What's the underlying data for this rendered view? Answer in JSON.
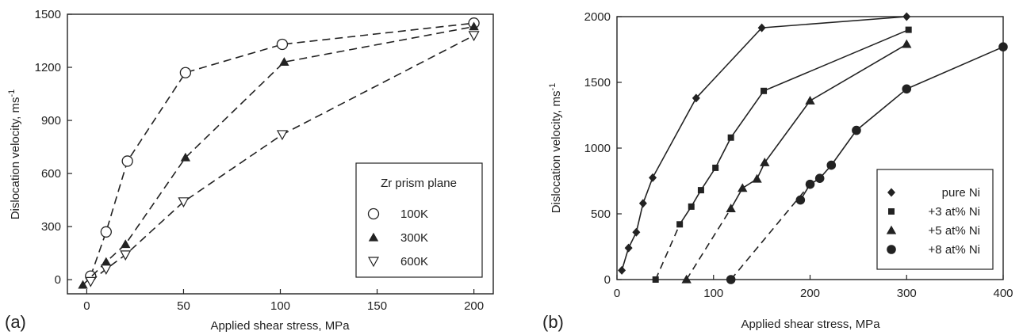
{
  "chart_data": [
    {
      "type": "line",
      "panel_label": "(a)",
      "xlabel": "Applied shear stress, MPa",
      "ylabel": "Dislocation velocity, ms",
      "ylabel_sup": "-1",
      "xlim": [
        -10,
        210
      ],
      "ylim": [
        -80,
        1500
      ],
      "x_ticks": [
        0,
        50,
        100,
        150,
        200
      ],
      "y_ticks": [
        0,
        300,
        600,
        900,
        1200,
        1500
      ],
      "x_tick_labels": [
        "0",
        "50",
        "100",
        "150",
        "200"
      ],
      "y_tick_labels": [
        "0",
        "300",
        "600",
        "900",
        "1200",
        "1500"
      ],
      "legend_title": "Zr prism plane",
      "legend_position": "lower-right",
      "series": [
        {
          "name": "100K",
          "marker": "open-circle",
          "line": "dashed",
          "x": [
            2,
            10,
            21,
            51,
            101,
            200
          ],
          "y": [
            20,
            270,
            670,
            1170,
            1330,
            1450
          ]
        },
        {
          "name": "300K",
          "marker": "filled-triangle",
          "line": "dashed",
          "x": [
            -2,
            10,
            20,
            51,
            102,
            200
          ],
          "y": [
            -30,
            100,
            200,
            690,
            1230,
            1430
          ]
        },
        {
          "name": "600K",
          "marker": "open-triangle-down",
          "line": "dashed",
          "x": [
            2,
            10,
            20,
            50,
            101,
            200
          ],
          "y": [
            -10,
            60,
            140,
            440,
            820,
            1380
          ]
        }
      ]
    },
    {
      "type": "line",
      "panel_label": "(b)",
      "xlabel": "Applied shear stress, MPa",
      "ylabel": "Dislocation velocity, ms",
      "ylabel_sup": "-1",
      "xlim": [
        0,
        400
      ],
      "ylim": [
        0,
        2000
      ],
      "x_ticks": [
        0,
        100,
        200,
        300,
        400
      ],
      "y_ticks": [
        0,
        500,
        1000,
        1500,
        2000
      ],
      "x_tick_labels": [
        "0",
        "100",
        "200",
        "300",
        "400"
      ],
      "y_tick_labels": [
        "0",
        "500",
        "1000",
        "1500",
        "2000"
      ],
      "legend_position": "lower-right",
      "series": [
        {
          "name": "pure Ni",
          "marker": "filled-diamond",
          "dashed_x": [],
          "dashed_y": [],
          "x": [
            5,
            12,
            20,
            27,
            37,
            82,
            150,
            300
          ],
          "y": [
            70,
            240,
            360,
            580,
            775,
            1380,
            1915,
            2000
          ]
        },
        {
          "name": "+3 at% Ni",
          "marker": "filled-square",
          "dashed_x": [
            40,
            65
          ],
          "dashed_y": [
            0,
            420
          ],
          "x": [
            65,
            77,
            87,
            102,
            118,
            152,
            302
          ],
          "y": [
            420,
            555,
            680,
            850,
            1080,
            1435,
            1900
          ]
        },
        {
          "name": "+5 at% Ni",
          "marker": "filled-triangle",
          "dashed_x": [
            72,
            118
          ],
          "dashed_y": [
            0,
            540
          ],
          "x": [
            118,
            130,
            145,
            153,
            200,
            300
          ],
          "y": [
            540,
            695,
            765,
            890,
            1360,
            1790
          ]
        },
        {
          "name": "+8 at% Ni",
          "marker": "filled-circle",
          "dashed_x": [
            118,
            200
          ],
          "dashed_y": [
            0,
            725
          ],
          "x": [
            190,
            200,
            210,
            222,
            248,
            300,
            400
          ],
          "y": [
            605,
            725,
            770,
            870,
            1135,
            1450,
            1770
          ]
        }
      ]
    }
  ]
}
